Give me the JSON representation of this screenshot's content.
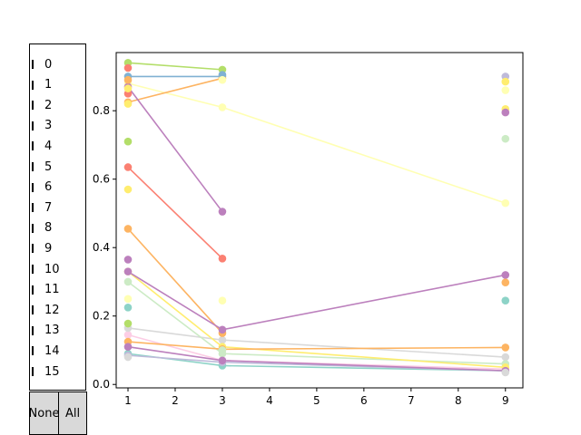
{
  "chart_data": {
    "type": "line",
    "title": "",
    "xlabel": "",
    "ylabel": "",
    "x": [
      1,
      3,
      9
    ],
    "xlim": [
      0.75,
      9.37
    ],
    "ylim": [
      -0.01,
      0.97
    ],
    "xticks": [
      "1",
      "2",
      "3",
      "4",
      "5",
      "6",
      "7",
      "8",
      "9"
    ],
    "yticks": [
      "0.0",
      "0.2",
      "0.4",
      "0.6",
      "0.8"
    ],
    "series": [
      {
        "name": "0",
        "color": "#8dd3c7",
        "values": [
          0.09,
          0.055,
          0.04
        ]
      },
      {
        "name": "1",
        "color": "#ffffb3",
        "values": [
          0.88,
          0.81,
          0.53
        ]
      },
      {
        "name": "2",
        "color": "#bebada",
        "values": [
          0.085,
          0.065,
          0.04
        ]
      },
      {
        "name": "3",
        "color": "#fb8072",
        "values": [
          0.635,
          0.368,
          null
        ]
      },
      {
        "name": "4",
        "color": "#80b1d3",
        "values": [
          0.9,
          0.9,
          null
        ]
      },
      {
        "name": "5",
        "color": "#fdb462",
        "values": [
          0.825,
          0.895,
          null
        ]
      },
      {
        "name": "6",
        "color": "#b3de69",
        "values": [
          0.94,
          0.92,
          null
        ]
      },
      {
        "name": "7",
        "color": "#fccde5",
        "values": [
          0.145,
          0.07,
          0.045
        ]
      },
      {
        "name": "8",
        "color": "#d9d9d9",
        "values": [
          0.165,
          0.13,
          0.08
        ]
      },
      {
        "name": "9",
        "color": "#bc80bd",
        "values": [
          0.87,
          0.505,
          null
        ]
      },
      {
        "name": "10",
        "color": "#ccebc5",
        "values": [
          0.3,
          0.09,
          0.06
        ]
      },
      {
        "name": "11",
        "color": "#ffed6f",
        "values": [
          0.33,
          0.11,
          0.05
        ]
      },
      {
        "name": "12",
        "color": "#fdb462",
        "values": [
          0.455,
          0.15,
          null
        ]
      },
      {
        "name": "13",
        "color": "#fdb462",
        "values": [
          0.125,
          0.103,
          0.108
        ]
      },
      {
        "name": "14",
        "color": "#bc80bd",
        "values": [
          0.33,
          0.16,
          0.32
        ]
      },
      {
        "name": "15",
        "color": "#bc80bd",
        "values": [
          0.11,
          0.07,
          0.04
        ]
      }
    ],
    "extra_points": [
      {
        "x": 1,
        "y": 0.925,
        "color": "#fb8072"
      },
      {
        "x": 1,
        "y": 0.89,
        "color": "#fdb462"
      },
      {
        "x": 1,
        "y": 0.85,
        "color": "#fb8072"
      },
      {
        "x": 1,
        "y": 0.865,
        "color": "#ffed6f"
      },
      {
        "x": 1,
        "y": 0.82,
        "color": "#ffed6f"
      },
      {
        "x": 1,
        "y": 0.71,
        "color": "#b3de69"
      },
      {
        "x": 1,
        "y": 0.57,
        "color": "#ffed6f"
      },
      {
        "x": 1,
        "y": 0.365,
        "color": "#bc80bd"
      },
      {
        "x": 1,
        "y": 0.25,
        "color": "#ffffb3"
      },
      {
        "x": 1,
        "y": 0.225,
        "color": "#8dd3c7"
      },
      {
        "x": 1,
        "y": 0.178,
        "color": "#b3de69"
      },
      {
        "x": 1,
        "y": 0.08,
        "color": "#d9d9d9"
      },
      {
        "x": 3,
        "y": 0.905,
        "color": "#80b1d3"
      },
      {
        "x": 3,
        "y": 0.89,
        "color": "#ffffb3"
      },
      {
        "x": 3,
        "y": 0.245,
        "color": "#ffffb3"
      },
      {
        "x": 3,
        "y": 0.1,
        "color": "#ccebc5"
      },
      {
        "x": 9,
        "y": 0.9,
        "color": "#bebada"
      },
      {
        "x": 9,
        "y": 0.885,
        "color": "#ffed6f"
      },
      {
        "x": 9,
        "y": 0.86,
        "color": "#ffffb3"
      },
      {
        "x": 9,
        "y": 0.805,
        "color": "#ffed6f"
      },
      {
        "x": 9,
        "y": 0.795,
        "color": "#bc80bd"
      },
      {
        "x": 9,
        "y": 0.718,
        "color": "#ccebc5"
      },
      {
        "x": 9,
        "y": 0.298,
        "color": "#fdb462"
      },
      {
        "x": 9,
        "y": 0.245,
        "color": "#8dd3c7"
      },
      {
        "x": 9,
        "y": 0.035,
        "color": "#d9d9d9"
      }
    ]
  },
  "legend": {
    "labels": [
      "0",
      "1",
      "2",
      "3",
      "4",
      "5",
      "6",
      "7",
      "8",
      "9",
      "10",
      "11",
      "12",
      "13",
      "14",
      "15"
    ]
  },
  "buttons": {
    "none_label": "None",
    "all_label": "All"
  }
}
